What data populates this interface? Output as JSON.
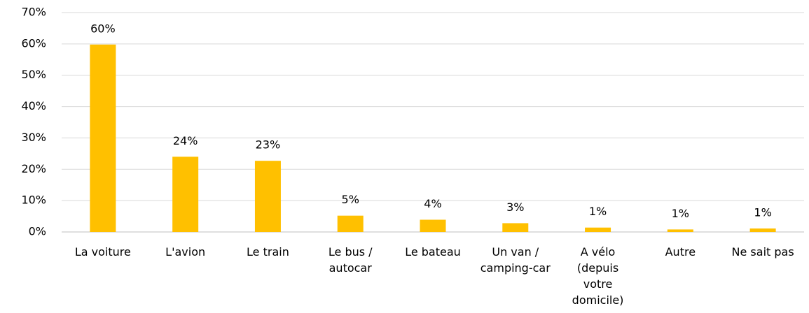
{
  "chart_data": {
    "type": "bar",
    "categories": [
      "La voiture",
      "L'avion",
      "Le train",
      "Le bus / autocar",
      "Le bateau",
      "Un van / camping-car",
      "A vélo (depuis votre domicile)",
      "Autre",
      "Ne sait pas"
    ],
    "values": [
      59.8,
      24,
      22.7,
      5.2,
      3.9,
      2.8,
      1.4,
      0.8,
      1.1
    ],
    "value_labels": [
      "60%",
      "24%",
      "23%",
      "5%",
      "4%",
      "3%",
      "1%",
      "1%",
      "1%"
    ],
    "color": "#ffc000",
    "ylim": [
      0,
      70
    ],
    "yticks": [
      {
        "value": 0,
        "label": "0%"
      },
      {
        "value": 10,
        "label": "10%"
      },
      {
        "value": 20,
        "label": "20%"
      },
      {
        "value": 30,
        "label": "30%"
      },
      {
        "value": 40,
        "label": "40%"
      },
      {
        "value": 50,
        "label": "50%"
      },
      {
        "value": 60,
        "label": "60%"
      },
      {
        "value": 70,
        "label": "70%"
      }
    ],
    "grid": true
  }
}
